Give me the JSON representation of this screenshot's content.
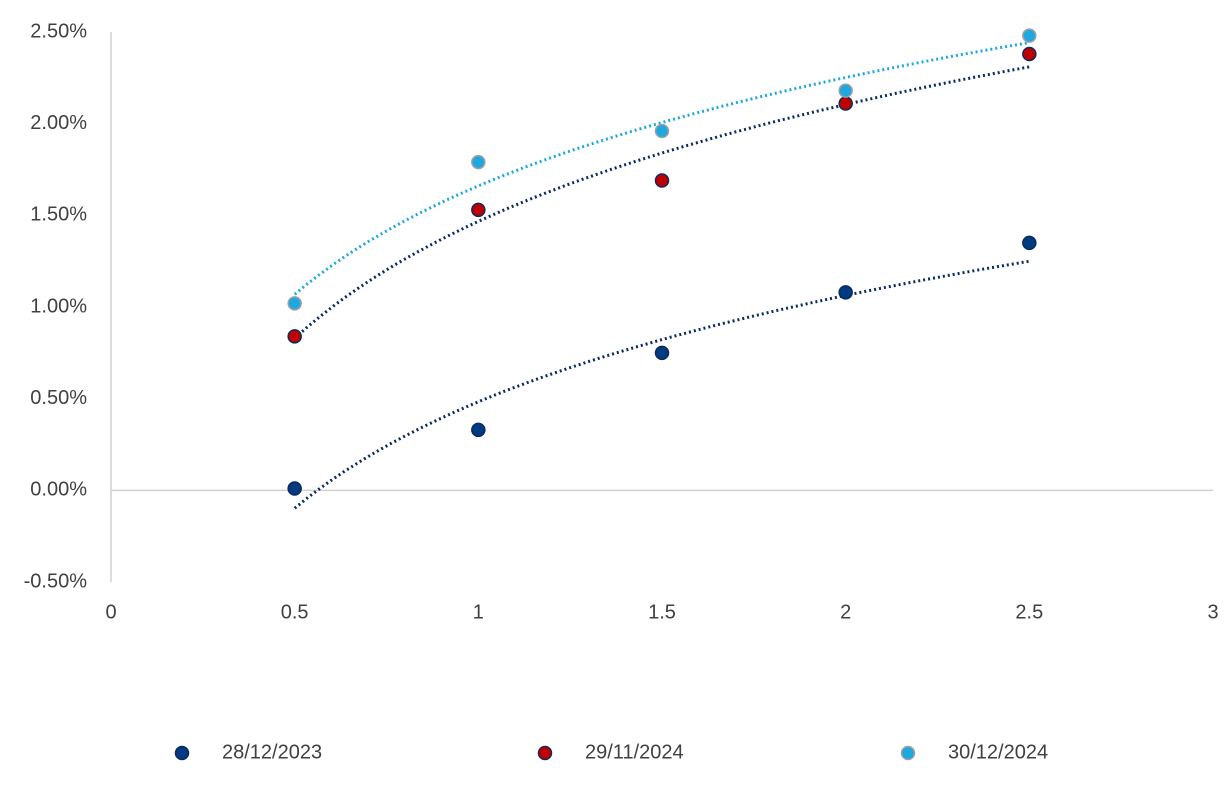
{
  "chart_data": {
    "type": "scatter",
    "x": [
      0.5,
      1,
      1.5,
      2,
      2.5
    ],
    "series": [
      {
        "name": "28/12/2023",
        "color": "#003a80",
        "edgecolor": "#0b2a5e",
        "trendline_color": "#0b2a5e",
        "values": [
          0.01,
          0.33,
          0.75,
          1.08,
          1.35
        ]
      },
      {
        "name": "29/11/2024",
        "color": "#c00000",
        "edgecolor": "#0b2a5e",
        "trendline_color": "#0b2a5e",
        "values": [
          0.84,
          1.53,
          1.69,
          2.11,
          2.38
        ]
      },
      {
        "name": "30/12/2024",
        "color": "#1fa8e0",
        "edgecolor": "#a0a0a0",
        "trendline_color": "#1fa8e0",
        "values": [
          1.02,
          1.79,
          1.96,
          2.18,
          2.48
        ]
      }
    ],
    "trendline": "log",
    "xlim": [
      0,
      3
    ],
    "xticks": [
      0,
      0.5,
      1,
      1.5,
      2,
      2.5,
      3
    ],
    "ylim": [
      -0.5,
      2.5
    ],
    "yticks": [
      {
        "value": -0.5,
        "label": "-0.50%"
      },
      {
        "value": 0,
        "label": "0.00%"
      },
      {
        "value": 0.5,
        "label": "0.50%"
      },
      {
        "value": 1,
        "label": "1.00%"
      },
      {
        "value": 1.5,
        "label": "1.50%"
      },
      {
        "value": 2,
        "label": "2.00%"
      },
      {
        "value": 2.5,
        "label": "2.50%"
      }
    ],
    "grid": false,
    "legend": "bottom"
  }
}
